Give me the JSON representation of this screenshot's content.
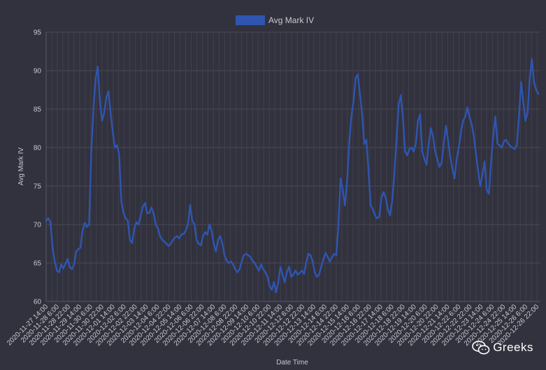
{
  "chart_data": {
    "type": "line",
    "legend": {
      "label": "Avg Mark IV",
      "position": "top",
      "color": "#2f55b0"
    },
    "xlabel": "Date Time",
    "ylabel": "Avg Mark IV",
    "ylim": [
      60,
      95
    ],
    "yticks": [
      60,
      65,
      70,
      75,
      80,
      85,
      90,
      95
    ],
    "grid": true,
    "x_tick_labels": [
      "2020-11-27 14:00",
      "2020-11-28 6:00",
      "2020-11-28 22:00",
      "2020-11-29 14:00",
      "2020-11-30 6:00",
      "2020-11-30 22:00",
      "2020-12-01 14:00",
      "2020-12-02 6:00",
      "2020-12-02 22:00",
      "2020-12-03 14:00",
      "2020-12-04 6:00",
      "2020-12-04 22:00",
      "2020-12-05 14:00",
      "2020-12-06 6:00",
      "2020-12-06 22:00",
      "2020-12-07 14:00",
      "2020-12-08 6:00",
      "2020-12-08 22:00",
      "2020-12-09 14:00",
      "2020-12-10 6:00",
      "2020-12-10 22:00",
      "2020-12-11 14:00",
      "2020-12-12 6:00",
      "2020-12-12 22:00",
      "2020-12-13 14:00",
      "2020-12-14 6:00",
      "2020-12-14 22:00",
      "2020-12-15 14:00",
      "2020-12-16 6:00",
      "2020-12-16 22:00",
      "2020-12-17 14:00",
      "2020-12-18 6:00",
      "2020-12-18 22:00",
      "2020-12-19 14:00",
      "2020-12-20 6:00",
      "2020-12-20 22:00",
      "2020-12-21 14:00",
      "2020-12-22 6:00",
      "2020-12-22 22:00",
      "2020-12-23 14:00",
      "2020-12-24 6:00",
      "2020-12-24 22:00",
      "2020-12-25 14:00",
      "2020-12-26 6:00",
      "2020-12-26 22:00"
    ],
    "series": [
      {
        "name": "Avg Mark IV",
        "color": "#2f55b0",
        "values": [
          70.5,
          70.8,
          70.3,
          67.0,
          65.2,
          64.0,
          63.8,
          64.8,
          64.3,
          64.9,
          65.5,
          64.5,
          64.2,
          64.8,
          66.5,
          66.8,
          67.0,
          69.3,
          70.2,
          69.7,
          70.0,
          79.5,
          85.0,
          89.0,
          90.5,
          86.0,
          83.5,
          84.5,
          86.5,
          87.3,
          84.5,
          82.0,
          80.0,
          80.3,
          79.0,
          73.0,
          71.5,
          70.8,
          70.5,
          68.0,
          67.6,
          69.5,
          70.3,
          70.0,
          71.2,
          72.3,
          72.8,
          71.5,
          71.5,
          72.2,
          71.5,
          70.0,
          69.5,
          68.5,
          68.0,
          67.8,
          67.5,
          67.2,
          67.5,
          68.0,
          68.3,
          68.5,
          68.2,
          68.7,
          68.8,
          69.2,
          70.0,
          72.5,
          70.5,
          70.0,
          68.0,
          67.5,
          67.3,
          68.5,
          69.0,
          68.7,
          70.0,
          69.2,
          67.5,
          66.5,
          68.0,
          68.5,
          67.5,
          66.0,
          65.3,
          65.0,
          65.2,
          64.8,
          64.2,
          63.8,
          64.2,
          65.2,
          66.0,
          66.2,
          66.0,
          65.8,
          65.3,
          65.0,
          64.5,
          64.0,
          64.8,
          64.2,
          63.8,
          63.2,
          62.0,
          61.5,
          62.5,
          61.2,
          62.5,
          64.5,
          63.5,
          62.5,
          63.8,
          64.5,
          63.2,
          63.5,
          64.0,
          63.5,
          63.7,
          64.0,
          63.6,
          65.0,
          66.2,
          66.0,
          65.2,
          63.8,
          63.2,
          63.5,
          64.5,
          65.5,
          66.3,
          65.8,
          65.2,
          65.7,
          66.2,
          66.0,
          70.0,
          76.0,
          74.5,
          72.5,
          75.5,
          80.5,
          84.0,
          86.0,
          89.0,
          89.5,
          87.0,
          84.5,
          80.5,
          81.0,
          77.0,
          72.5,
          72.0,
          71.2,
          70.8,
          71.0,
          73.5,
          74.2,
          73.5,
          72.0,
          71.2,
          73.0,
          76.5,
          81.0,
          85.5,
          86.8,
          84.0,
          79.5,
          79.0,
          79.8,
          80.0,
          79.5,
          80.5,
          83.5,
          84.3,
          79.5,
          78.5,
          77.8,
          80.5,
          82.5,
          81.5,
          79.5,
          78.5,
          77.5,
          78.0,
          80.5,
          82.8,
          81.0,
          78.8,
          77.3,
          76.0,
          78.5,
          80.0,
          82.0,
          83.5,
          84.0,
          85.2,
          84.0,
          83.0,
          81.5,
          79.2,
          77.0,
          75.0,
          76.5,
          78.2,
          74.5,
          74.0,
          78.0,
          81.5,
          84.0,
          80.5,
          80.3,
          80.0,
          80.8,
          81.0,
          80.5,
          80.2,
          80.0,
          79.8,
          80.3,
          84.0,
          88.5,
          86.0,
          83.5,
          84.5,
          89.0,
          91.5,
          88.5,
          87.5,
          87.0
        ]
      }
    ]
  },
  "watermark": {
    "text": "Greeks",
    "icon": "wechat-icon"
  }
}
